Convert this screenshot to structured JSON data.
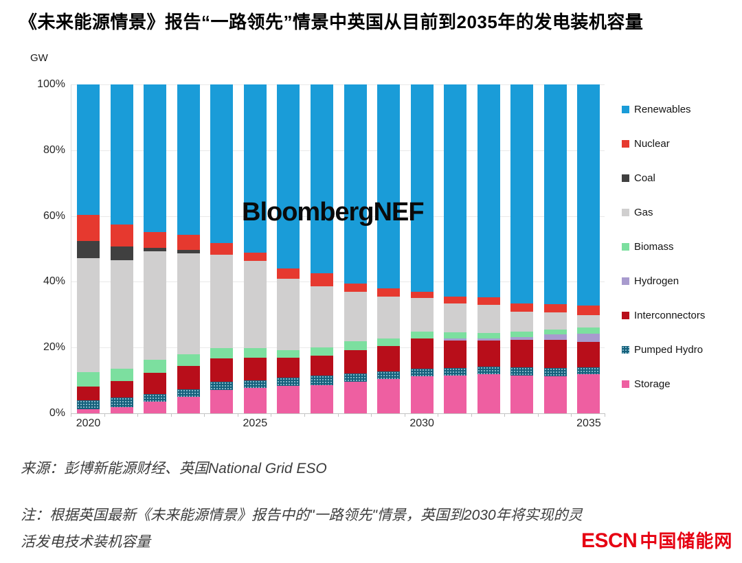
{
  "title": "《未来能源情景》报告“一路领先”情景中英国从目前到2035年的发电装机容量",
  "chart": {
    "unit_label": "GW",
    "watermark": "BloombergNEF",
    "yticks": [
      "100%",
      "80%",
      "60%",
      "40%",
      "20%",
      "0%"
    ],
    "xticks": [
      {
        "label": "2020",
        "index": 0
      },
      {
        "label": "2025",
        "index": 5
      },
      {
        "label": "2030",
        "index": 10
      },
      {
        "label": "2035",
        "index": 15
      }
    ]
  },
  "chart_data": {
    "type": "bar",
    "stacked": true,
    "percent_stacked": true,
    "title": "《未来能源情景》报告“一路领先”情景中英国从目前到2035年的发电装机容量",
    "xlabel": "",
    "ylabel": "GW",
    "ylim": [
      0,
      100
    ],
    "grid": true,
    "legend_position": "right",
    "categories": [
      2020,
      2021,
      2022,
      2023,
      2024,
      2025,
      2026,
      2027,
      2028,
      2029,
      2030,
      2031,
      2032,
      2033,
      2034,
      2035
    ],
    "series": [
      {
        "key": "storage",
        "name": "Storage",
        "color": "#ee5fa1",
        "values": [
          1.3,
          1.8,
          3.5,
          5.0,
          7.1,
          7.8,
          8.3,
          8.6,
          9.5,
          10.4,
          11.2,
          11.5,
          11.8,
          11.5,
          11.3,
          11.8
        ]
      },
      {
        "key": "pumped-hydro",
        "name": "Pumped Hydro",
        "color": "#15617c",
        "pattern": "dots",
        "values": [
          2.7,
          2.9,
          2.4,
          2.4,
          2.6,
          2.3,
          2.5,
          2.9,
          2.7,
          2.4,
          2.4,
          2.3,
          2.4,
          2.5,
          2.4,
          2.1
        ]
      },
      {
        "key": "interconnectors",
        "name": "Interconnectors",
        "color": "#b80e1a",
        "values": [
          4.1,
          5.1,
          6.4,
          7.0,
          7.1,
          6.9,
          6.2,
          6.0,
          7.0,
          7.7,
          9.2,
          8.3,
          7.9,
          8.3,
          8.7,
          7.9
        ]
      },
      {
        "key": "hydrogen",
        "name": "Hydrogen",
        "color": "#a89bce",
        "values": [
          0,
          0,
          0,
          0,
          0,
          0,
          0,
          0,
          0,
          0,
          0,
          0.6,
          0.6,
          0.9,
          1.6,
          2.4
        ]
      },
      {
        "key": "biomass",
        "name": "Biomass",
        "color": "#7cdf9f",
        "values": [
          4.4,
          3.8,
          4.0,
          3.6,
          3.0,
          2.8,
          2.3,
          2.5,
          2.7,
          2.2,
          2.0,
          2.0,
          1.8,
          1.6,
          1.4,
          1.8
        ]
      },
      {
        "key": "gas",
        "name": "Gas",
        "color": "#d0cfcf",
        "values": [
          34.7,
          32.9,
          33.0,
          30.7,
          28.4,
          26.5,
          21.6,
          18.6,
          15.1,
          12.7,
          10.2,
          8.8,
          8.5,
          6.2,
          5.2,
          3.9
        ]
      },
      {
        "key": "coal",
        "name": "Coal",
        "color": "#404040",
        "values": [
          5.3,
          4.3,
          1.0,
          0.9,
          0,
          0,
          0,
          0,
          0,
          0,
          0,
          0,
          0,
          0,
          0,
          0
        ]
      },
      {
        "key": "nuclear",
        "name": "Nuclear",
        "color": "#e6392f",
        "values": [
          7.8,
          6.7,
          4.9,
          4.6,
          3.6,
          2.6,
          3.1,
          3.9,
          2.5,
          2.6,
          2.0,
          2.0,
          2.3,
          2.3,
          2.6,
          2.8
        ]
      },
      {
        "key": "renewables",
        "name": "Renewables",
        "color": "#1a9cd8",
        "values": [
          39.7,
          42.5,
          44.8,
          45.8,
          48.2,
          51.1,
          56.0,
          57.5,
          60.5,
          62.0,
          63.0,
          64.5,
          64.7,
          66.7,
          66.8,
          67.3
        ]
      }
    ]
  },
  "footer": {
    "source": "来源：彭博新能源财经、英国National Grid ESO",
    "note_lines": [
      "注：根据英国最新《未来能源情景》报告中的\"一路领先\"情景，英国到2030年将实现的灵",
      "活发电技术装机容量"
    ],
    "logo_latin": "ESCN",
    "logo_cjk": "中国储能网"
  }
}
